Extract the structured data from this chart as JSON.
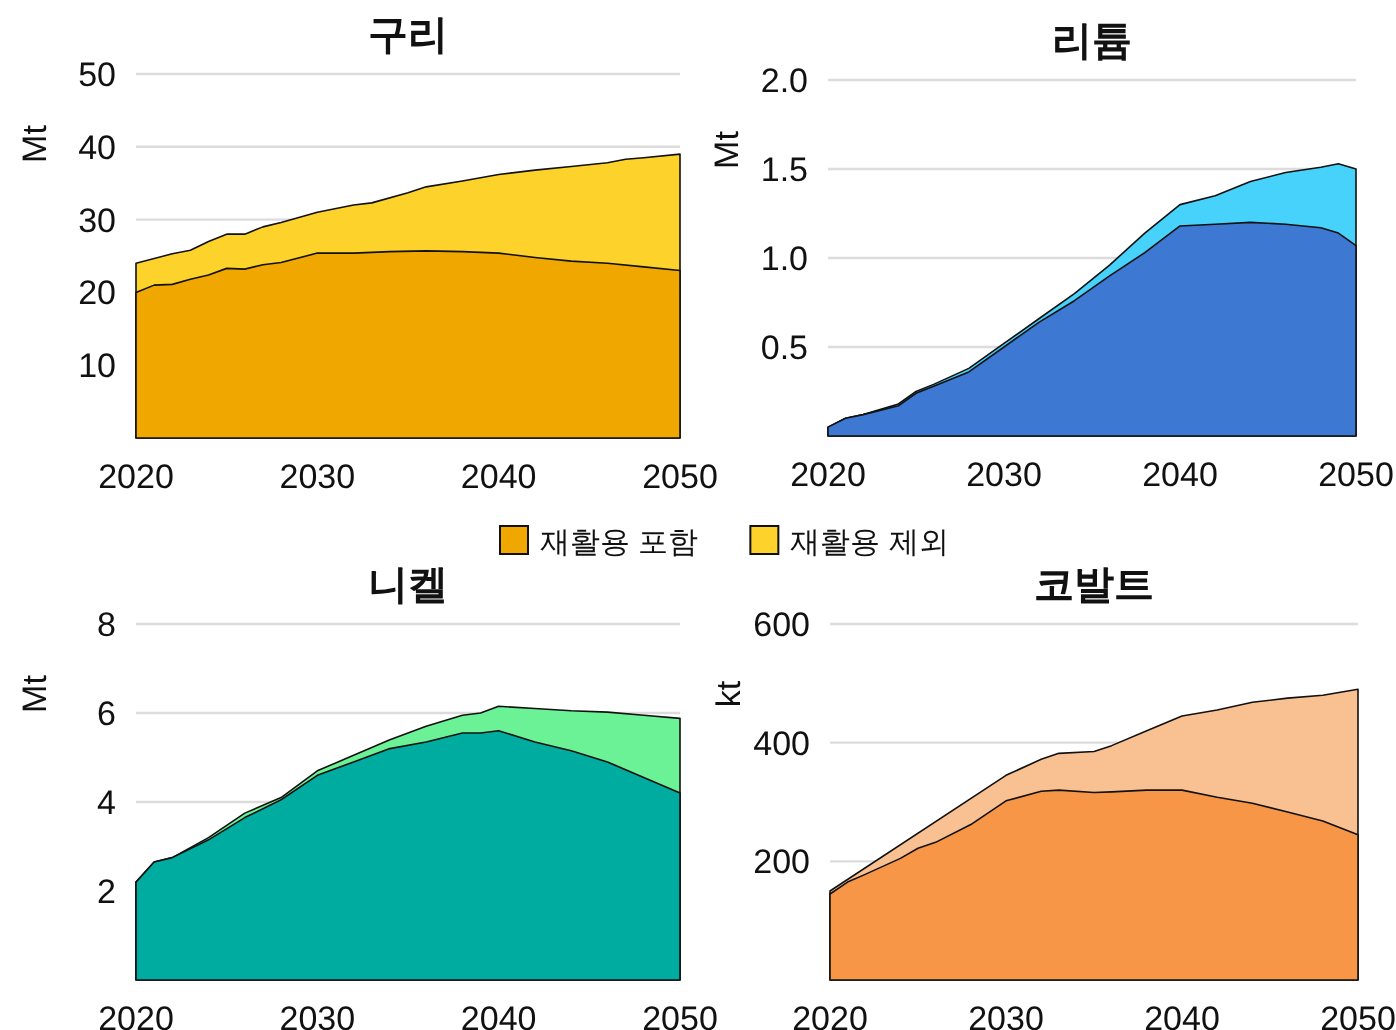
{
  "chart_data": [
    {
      "type": "area",
      "title": "구리",
      "ylabel": "Mt",
      "xlim": [
        2020,
        2050
      ],
      "xticks": [
        2020,
        2030,
        2040,
        2050
      ],
      "ylim": [
        0,
        50
      ],
      "yticks": [
        10,
        20,
        30,
        40,
        50
      ],
      "grid": "y",
      "legend": "bottom",
      "series": [
        {
          "name": "재활용 제외",
          "color": "#fdd22a",
          "x": [
            2020,
            2022,
            2023,
            2024,
            2025,
            2026,
            2027,
            2028,
            2030,
            2032,
            2033,
            2035,
            2036,
            2038,
            2040,
            2042,
            2044,
            2046,
            2047,
            2048,
            2050
          ],
          "values": [
            24,
            25.3,
            25.8,
            27,
            28,
            28,
            29,
            29.6,
            31,
            32,
            32.3,
            33.7,
            34.5,
            35.3,
            36.2,
            36.8,
            37.3,
            37.8,
            38.3,
            38.5,
            39
          ]
        },
        {
          "name": "재활용 포함",
          "color": "#f0a800",
          "x": [
            2020,
            2021,
            2022,
            2023,
            2024,
            2025,
            2026,
            2027,
            2028,
            2030,
            2032,
            2034,
            2036,
            2038,
            2040,
            2042,
            2044,
            2046,
            2048,
            2050
          ],
          "values": [
            20,
            21,
            21.1,
            21.8,
            22.4,
            23.3,
            23.2,
            23.8,
            24.1,
            25.4,
            25.4,
            25.6,
            25.7,
            25.6,
            25.4,
            24.8,
            24.3,
            24,
            23.5,
            23
          ]
        }
      ]
    },
    {
      "type": "area",
      "title": "리튬",
      "ylabel": "Mt",
      "xlim": [
        2020,
        2050
      ],
      "xticks": [
        2020,
        2030,
        2040,
        2050
      ],
      "ylim": [
        0,
        2
      ],
      "yticks": [
        0.5,
        {
          "value": 1,
          "label": "1.0"
        },
        1.5,
        {
          "value": 2,
          "label": "2.0"
        }
      ],
      "grid": "y",
      "series": [
        {
          "color": "#47d2fb",
          "x": [
            2020,
            2021,
            2022,
            2024,
            2025,
            2026,
            2028,
            2030,
            2032,
            2034,
            2036,
            2038,
            2040,
            2042,
            2044,
            2046,
            2048,
            2049,
            2050
          ],
          "values": [
            0.05,
            0.1,
            0.12,
            0.18,
            0.25,
            0.29,
            0.38,
            0.52,
            0.66,
            0.8,
            0.96,
            1.14,
            1.3,
            1.35,
            1.43,
            1.48,
            1.51,
            1.53,
            1.5
          ]
        },
        {
          "color": "#3d78d3",
          "x": [
            2020,
            2021,
            2022,
            2024,
            2025,
            2026,
            2028,
            2030,
            2032,
            2034,
            2036,
            2038,
            2040,
            2042,
            2044,
            2046,
            2048,
            2049,
            2050
          ],
          "values": [
            0.05,
            0.1,
            0.12,
            0.17,
            0.24,
            0.28,
            0.36,
            0.5,
            0.64,
            0.76,
            0.9,
            1.03,
            1.18,
            1.19,
            1.2,
            1.19,
            1.17,
            1.14,
            1.07
          ]
        }
      ]
    },
    {
      "type": "area",
      "title": "니켈",
      "ylabel": "Mt",
      "xlim": [
        2020,
        2050
      ],
      "xticks": [
        2020,
        2030,
        2040,
        2050
      ],
      "ylim": [
        0,
        8
      ],
      "yticks": [
        2,
        4,
        6,
        8
      ],
      "grid": "y",
      "series": [
        {
          "color": "#6cf296",
          "x": [
            2020,
            2021,
            2022,
            2024,
            2026,
            2028,
            2030,
            2032,
            2034,
            2036,
            2038,
            2039,
            2040,
            2042,
            2044,
            2046,
            2048,
            2050
          ],
          "values": [
            2.2,
            2.65,
            2.75,
            3.2,
            3.75,
            4.1,
            4.7,
            5.05,
            5.4,
            5.7,
            5.95,
            6,
            6.15,
            6.1,
            6.05,
            6.02,
            5.95,
            5.88
          ]
        },
        {
          "color": "#00ab9f",
          "x": [
            2020,
            2021,
            2022,
            2024,
            2026,
            2028,
            2030,
            2032,
            2034,
            2036,
            2038,
            2039,
            2040,
            2042,
            2044,
            2046,
            2048,
            2050
          ],
          "values": [
            2.2,
            2.65,
            2.75,
            3.15,
            3.65,
            4.05,
            4.6,
            4.9,
            5.2,
            5.35,
            5.55,
            5.55,
            5.6,
            5.35,
            5.15,
            4.9,
            4.55,
            4.2
          ]
        }
      ]
    },
    {
      "type": "area",
      "title": "코발트",
      "ylabel": "kt",
      "xlim": [
        2020,
        2050
      ],
      "xticks": [
        2020,
        2030,
        2040,
        2050
      ],
      "ylim": [
        0,
        600
      ],
      "yticks": [
        200,
        400,
        600
      ],
      "grid": "y",
      "series": [
        {
          "color": "#f9c192",
          "x": [
            2020,
            2030,
            2032,
            2033,
            2035,
            2036,
            2038,
            2040,
            2042,
            2044,
            2046,
            2048,
            2050
          ],
          "values": [
            150,
            345,
            372,
            382,
            385,
            395,
            420,
            445,
            455,
            468,
            475,
            480,
            490
          ]
        },
        {
          "color": "#f79646",
          "x": [
            2020,
            2021,
            2022,
            2024,
            2025,
            2026,
            2028,
            2030,
            2032,
            2033,
            2035,
            2036,
            2038,
            2040,
            2042,
            2044,
            2046,
            2048,
            2050
          ],
          "values": [
            145,
            165,
            178,
            205,
            222,
            232,
            262,
            302,
            318,
            320,
            316,
            317,
            320,
            320,
            308,
            298,
            283,
            268,
            245
          ]
        }
      ]
    }
  ]
}
